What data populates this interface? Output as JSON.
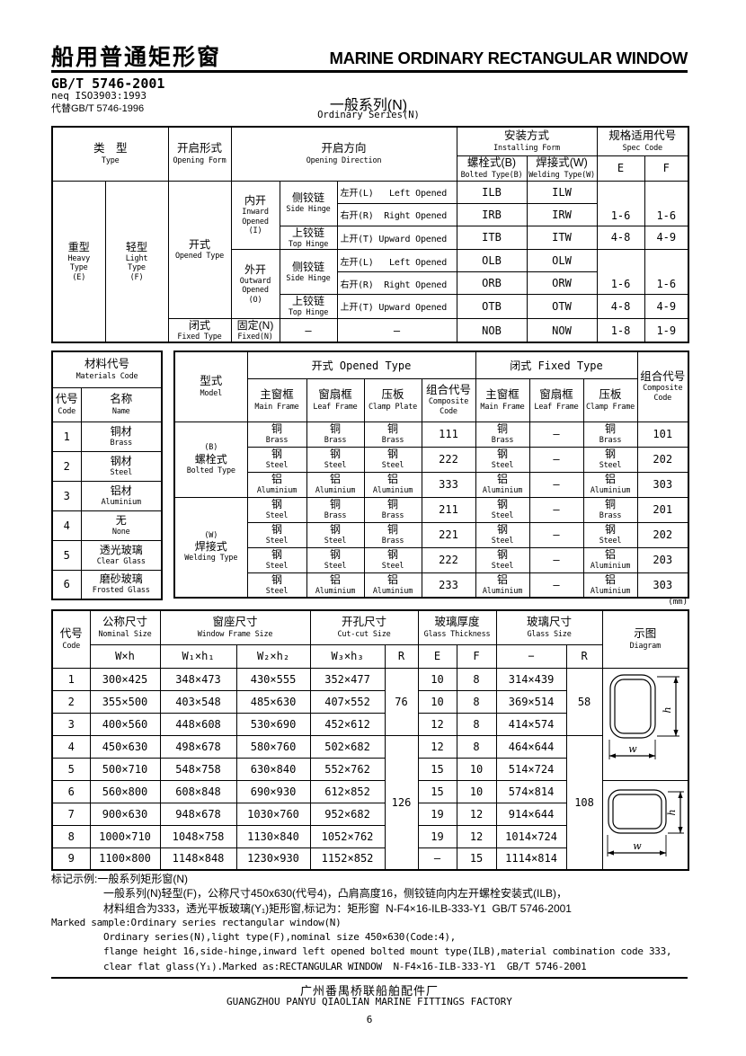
{
  "header": {
    "title_zh": "船用普通矩形窗",
    "title_en": "MARINE ORDINARY RECTANGULAR WINDOW",
    "standard": "GB/T 5746-2001",
    "neq": "neq ISO3903:1993",
    "replaces": "代替GB/T 5746-1996",
    "series_zh": "一般系列(N)",
    "series_en": "Ordinary Series(N)"
  },
  "t1": {
    "h_type": "类　型\nType",
    "h_form": "开启形式\nOpening Form",
    "h_dir": "开启方向\nOpening Direction",
    "h_install": "安装方式\nInstalling Form",
    "h_bolted": "螺栓式(B)\nBolted Type(B)",
    "h_welding": "焊接式(W)\nWelding Type(W)",
    "h_spec": "规格适用代号\nSpec Code",
    "h_e": "E",
    "h_f": "F",
    "heavy": "重型\nHeavy\nType\n(E)",
    "light": "轻型\nLight\nType\n(F)",
    "opened": "开式\nOpened Type",
    "fixed": "闭式\nFixed Type",
    "inward": "内开\nInward\nOpened\n(I)",
    "outward": "外开\nOutward\nOpened\n(O)",
    "fixed_n": "固定(N)\nFixed(N)",
    "side_hinge": "侧铰链\nSide Hinge",
    "top_hinge": "上铰链\nTop Hinge",
    "dir_left": "左开(L)   Left Opened",
    "dir_right": "右开(R)  Right Opened",
    "dir_up": "上开(T) Upward Opened",
    "dash": "—",
    "codes": [
      [
        "ILB",
        "ILW"
      ],
      [
        "IRB",
        "IRW"
      ],
      [
        "ITB",
        "ITW"
      ],
      [
        "OLB",
        "OLW"
      ],
      [
        "ORB",
        "ORW"
      ],
      [
        "OTB",
        "OTW"
      ],
      [
        "NOB",
        "NOW"
      ]
    ],
    "spec": [
      [
        "1-6",
        "1-6"
      ],
      [
        "4-8",
        "4-9"
      ],
      [
        "1-6",
        "1-6"
      ],
      [
        "4-8",
        "4-9"
      ],
      [
        "1-8",
        "1-9"
      ]
    ]
  },
  "materials": {
    "h_title": "材料代号\nMaterials Code",
    "h_code": "代号\nCode",
    "h_name": "名称\nName",
    "rows": [
      [
        "1",
        "铜材\nBrass"
      ],
      [
        "2",
        "钢材\nSteel"
      ],
      [
        "3",
        "铝材\nAluminium"
      ],
      [
        "4",
        "无\nNone"
      ],
      [
        "5",
        "透光玻璃\nClear Glass"
      ],
      [
        "6",
        "磨砂玻璃\nFrosted Glass"
      ]
    ]
  },
  "t2": {
    "h_model": "型式\nModel",
    "h_opened": "开式 Opened Type",
    "h_fixed": "闭式 Fixed Type",
    "h_main": "主窗框\nMain Frame",
    "h_leaf": "窗扇框\nLeaf Frame",
    "h_clamp_plate": "压板\nClamp Plate",
    "h_clamp_frame": "压板\nClamp Frame",
    "h_comp": "组合代号\nComposite\nCode",
    "bolted": "(B)\n螺栓式\nBolted Type",
    "welding": "(W)\n焊接式\nWelding Type",
    "rows": [
      [
        "铜\nBrass",
        "铜\nBrass",
        "铜\nBrass",
        "111",
        "铜\nBrass",
        "—",
        "铜\nBrass",
        "101"
      ],
      [
        "钢\nSteel",
        "钢\nSteel",
        "钢\nSteel",
        "222",
        "钢\nSteel",
        "—",
        "钢\nSteel",
        "202"
      ],
      [
        "铝\nAluminium",
        "铝\nAluminium",
        "铝\nAluminium",
        "333",
        "铝\nAluminium",
        "—",
        "铝\nAluminium",
        "303"
      ],
      [
        "钢\nSteel",
        "铜\nBrass",
        "铜\nBrass",
        "211",
        "钢\nSteel",
        "—",
        "铜\nBrass",
        "201"
      ],
      [
        "钢\nSteel",
        "钢\nSteel",
        "铜\nBrass",
        "221",
        "钢\nSteel",
        "—",
        "钢\nSteel",
        "202"
      ],
      [
        "钢\nSteel",
        "钢\nSteel",
        "钢\nSteel",
        "222",
        "钢\nSteel",
        "—",
        "铝\nAluminium",
        "203"
      ],
      [
        "钢\nSteel",
        "铝\nAluminium",
        "铝\nAluminium",
        "233",
        "铝\nAluminium",
        "—",
        "铝\nAluminium",
        "303"
      ]
    ],
    "unit": "(mm)"
  },
  "t3": {
    "h_code": "代号\nCode",
    "h_nominal": "公称尺寸\nNominal Size",
    "h_frame": "窗座尺寸\nWindow Frame Size",
    "h_cut": "开孔尺寸\nCut-cut Size",
    "h_thick": "玻璃厚度\nGlass Thickness",
    "h_glass": "玻璃尺寸\nGlass Size",
    "h_diagram": "示图\nDiagram",
    "sub": [
      "W×h",
      "W₁×h₁",
      "W₂×h₂",
      "W₃×h₃",
      "R",
      "E",
      "F",
      "−",
      "R"
    ],
    "rows": [
      [
        "1",
        "300×425",
        "348×473",
        "430×555",
        "352×477",
        "10",
        "8",
        "314×439"
      ],
      [
        "2",
        "355×500",
        "403×548",
        "485×630",
        "407×552",
        "10",
        "8",
        "369×514"
      ],
      [
        "3",
        "400×560",
        "448×608",
        "530×690",
        "452×612",
        "12",
        "8",
        "414×574"
      ],
      [
        "4",
        "450×630",
        "498×678",
        "580×760",
        "502×682",
        "12",
        "8",
        "464×644"
      ],
      [
        "5",
        "500×710",
        "548×758",
        "630×840",
        "552×762",
        "15",
        "10",
        "514×724"
      ],
      [
        "6",
        "560×800",
        "608×848",
        "690×930",
        "612×852",
        "15",
        "10",
        "574×814"
      ],
      [
        "7",
        "900×630",
        "948×678",
        "1030×760",
        "952×682",
        "19",
        "12",
        "914×644"
      ],
      [
        "8",
        "1000×710",
        "1048×758",
        "1130×840",
        "1052×762",
        "19",
        "12",
        "1014×724"
      ],
      [
        "9",
        "1100×800",
        "1148×848",
        "1230×930",
        "1152×852",
        "—",
        "15",
        "1114×814"
      ]
    ],
    "r_cut": [
      "76",
      "126"
    ],
    "r_glass": [
      "58",
      "108"
    ],
    "diagram": {
      "h": "h",
      "w": "w"
    }
  },
  "notes": {
    "zh1": "标记示例:一般系列矩形窗(N)",
    "zh2": "一般系列(N)轻型(F)，公称尺寸450x630(代号4)，凸肩高度16，侧铰链向内左开螺栓安装式(ILB)，",
    "zh3": "材料组合为333，透光平板玻璃(Y₁)矩形窗,标记为：矩形窗  N-F4×16-ILB-333-Y1  GB/T 5746-2001",
    "en1": "Marked sample:Ordinary series rectangular window(N)",
    "en2": "Ordinary series(N),light type(F),nominal size 450×630(Code:4),",
    "en3": "flange height 16,side-hinge,inward left opened bolted mount type(ILB),material combination code 333,",
    "en4": "clear flat glass(Y₁).Marked as:RECTANGULAR WINDOW  N-F4×16-ILB-333-Y1  GB/T 5746-2001"
  },
  "footer": {
    "factory_zh": "广州番禺桥联船舶配件厂",
    "factory_en": "GUANGZHOU PANYU QIAOLIAN MARINE FITTINGS FACTORY",
    "page": "6"
  }
}
